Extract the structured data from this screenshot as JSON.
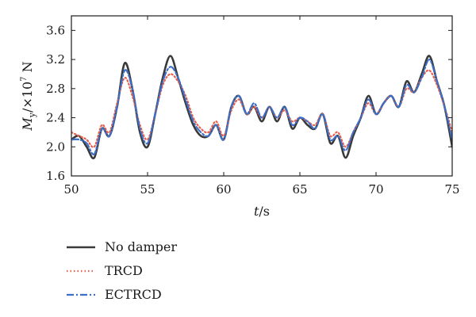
{
  "chart_data": {
    "type": "line",
    "xlabel": {
      "var": "t",
      "unit": "/s"
    },
    "ylabel": {
      "var": "M",
      "sub": "y",
      "rest": "/×10",
      "exp": "7",
      "unit": " N"
    },
    "xlim": [
      50,
      75
    ],
    "ylim": [
      1.6,
      3.8
    ],
    "xticks": [
      50,
      55,
      60,
      65,
      70,
      75
    ],
    "yticks": [
      1.6,
      2.0,
      2.4,
      2.8,
      3.2,
      3.6
    ],
    "grid": false,
    "legend_position": "bottom-left, below plot",
    "x": [
      50,
      50.5,
      51,
      51.5,
      52,
      52.5,
      53,
      53.5,
      54,
      54.5,
      55,
      55.5,
      56,
      56.5,
      57,
      57.5,
      58,
      58.5,
      59,
      59.5,
      60,
      60.5,
      61,
      61.5,
      62,
      62.5,
      63,
      63.5,
      64,
      64.5,
      65,
      65.5,
      66,
      66.5,
      67,
      67.5,
      68,
      68.5,
      69,
      69.5,
      70,
      70.5,
      71,
      71.5,
      72,
      72.5,
      73,
      73.5,
      74,
      74.5,
      75
    ],
    "series": [
      {
        "name": "No damper",
        "color": "#3a3a3a",
        "style": "solid",
        "values": [
          2.1,
          2.15,
          2.0,
          1.85,
          2.25,
          2.15,
          2.55,
          3.15,
          2.8,
          2.2,
          2.0,
          2.45,
          2.95,
          3.25,
          2.95,
          2.6,
          2.3,
          2.15,
          2.15,
          2.3,
          2.1,
          2.55,
          2.7,
          2.45,
          2.55,
          2.35,
          2.55,
          2.35,
          2.55,
          2.25,
          2.4,
          2.3,
          2.25,
          2.45,
          2.05,
          2.15,
          1.85,
          2.15,
          2.4,
          2.7,
          2.45,
          2.6,
          2.7,
          2.55,
          2.9,
          2.75,
          3.0,
          3.25,
          2.9,
          2.55,
          2.0
        ]
      },
      {
        "name": "TRCD",
        "color": "#e8604c",
        "style": "dotted",
        "values": [
          2.2,
          2.15,
          2.1,
          2.0,
          2.3,
          2.2,
          2.6,
          2.95,
          2.7,
          2.3,
          2.1,
          2.45,
          2.85,
          3.0,
          2.9,
          2.7,
          2.4,
          2.25,
          2.2,
          2.35,
          2.15,
          2.5,
          2.65,
          2.45,
          2.55,
          2.4,
          2.55,
          2.4,
          2.5,
          2.35,
          2.4,
          2.35,
          2.3,
          2.45,
          2.15,
          2.2,
          2.0,
          2.2,
          2.4,
          2.6,
          2.45,
          2.6,
          2.7,
          2.55,
          2.8,
          2.75,
          2.95,
          3.05,
          2.85,
          2.55,
          2.2
        ]
      },
      {
        "name": "ECTRCD",
        "color": "#3d6fc9",
        "style": "dashdot",
        "values": [
          2.1,
          2.1,
          2.05,
          1.9,
          2.25,
          2.15,
          2.55,
          3.05,
          2.8,
          2.25,
          2.05,
          2.45,
          2.9,
          3.1,
          2.95,
          2.65,
          2.35,
          2.2,
          2.15,
          2.3,
          2.1,
          2.55,
          2.7,
          2.45,
          2.6,
          2.4,
          2.55,
          2.4,
          2.55,
          2.3,
          2.4,
          2.35,
          2.25,
          2.45,
          2.1,
          2.15,
          1.95,
          2.2,
          2.4,
          2.65,
          2.45,
          2.6,
          2.7,
          2.55,
          2.85,
          2.75,
          2.95,
          3.2,
          2.9,
          2.55,
          2.1
        ]
      }
    ]
  }
}
